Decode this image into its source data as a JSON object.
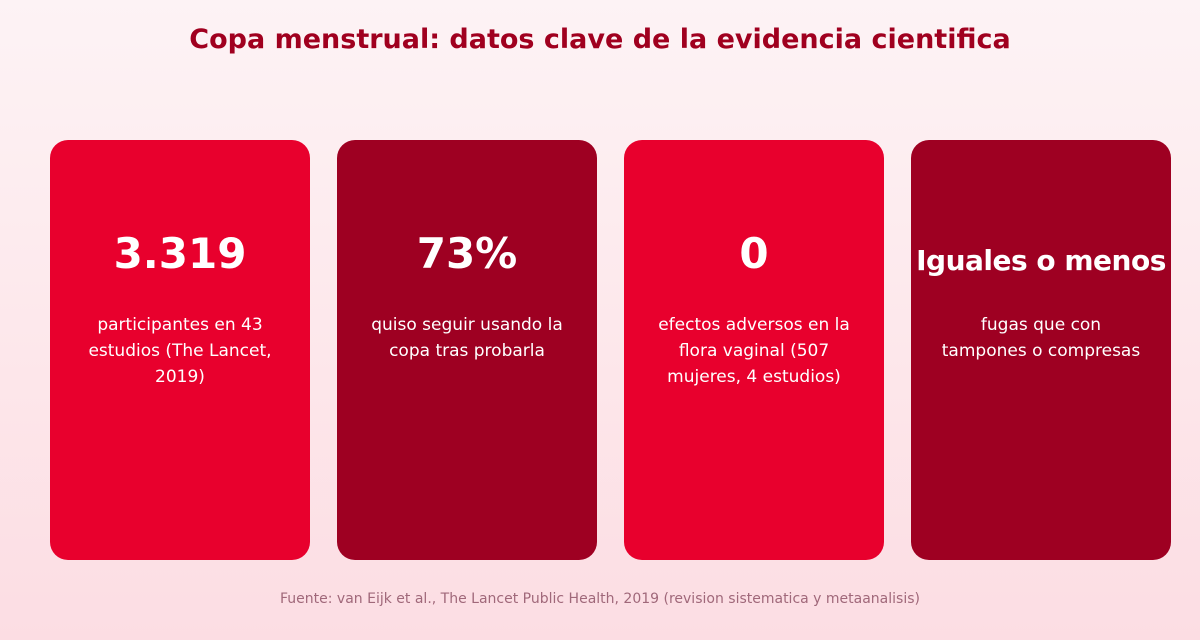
{
  "title": "Copa menstrual: datos clave de la evidencia cientifica",
  "cards": [
    {
      "value": "3.319",
      "description": "participantes en 43 estudios (The Lancet, 2019)",
      "color": "#e8002d"
    },
    {
      "value": "73%",
      "description": "quiso seguir usando la copa tras probarla",
      "color": "#9e0022"
    },
    {
      "value": "0",
      "description": "efectos adversos en la flora vaginal (507 mujeres, 4 estudios)",
      "color": "#e8002d"
    },
    {
      "value": "Iguales o menos",
      "description": "fugas que con tampones o compresas",
      "color": "#9e0022"
    }
  ],
  "source": "Fuente: van Eijk et al., The Lancet Public Health, 2019 (revision sistematica y metaanalisis)",
  "colors": {
    "title": "#a0001f",
    "accent_bright": "#e8002d",
    "accent_dark": "#9e0022",
    "source_text": "#a0687a"
  }
}
